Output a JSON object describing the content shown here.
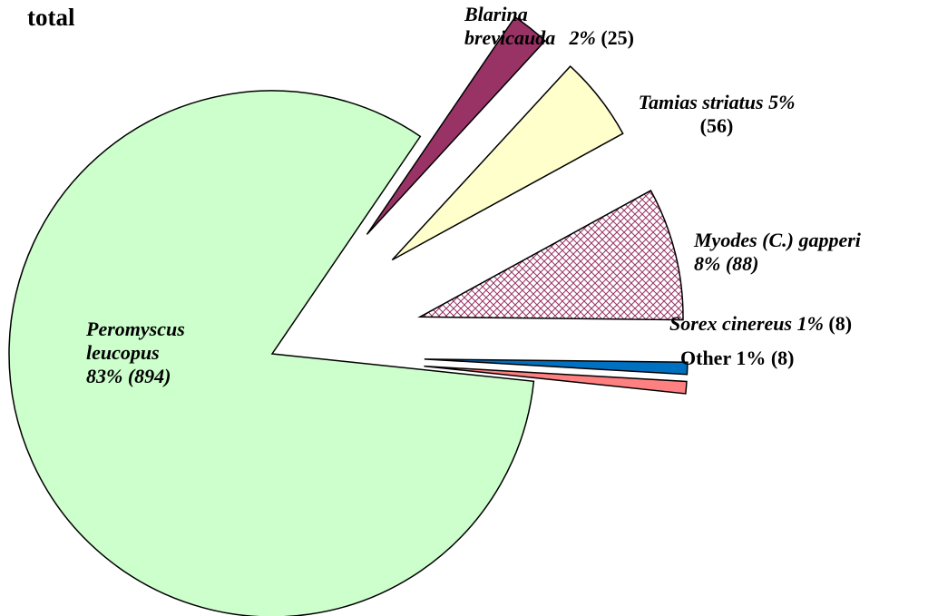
{
  "chart_data": {
    "type": "pie",
    "title": "total",
    "categories": [
      "Peromyscus leucopus",
      "Blarina brevicauda",
      "Tamias striatus",
      "Myodes (C.) gapperi",
      "Sorex cinereus",
      "Other"
    ],
    "values": [
      894,
      25,
      56,
      88,
      8,
      8
    ],
    "value_labels": [
      "(894)",
      "(25)",
      "(56)",
      "(88)",
      "(8)",
      "(8)"
    ],
    "percent_labels": [
      "83%",
      "2%",
      "5%",
      "8%",
      "1%",
      "1%"
    ],
    "colors": [
      "#ccffcc",
      "#993366",
      "#ffffcc",
      "#993366",
      "#0070c0",
      "#ff8080"
    ],
    "hatched": [
      false,
      false,
      false,
      true,
      false,
      false
    ],
    "exploded": [
      false,
      true,
      true,
      true,
      true,
      true
    ]
  }
}
